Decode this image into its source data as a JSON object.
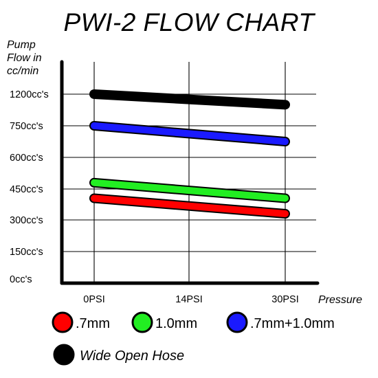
{
  "chart_data": {
    "type": "line",
    "title": "PWI-2 FLOW CHART",
    "ylabel_lines": [
      "Pump",
      "Flow in",
      "cc/min"
    ],
    "xlabel": "Pressure",
    "categories": [
      "0PSI",
      "14PSI",
      "30PSI"
    ],
    "y_ticks": [
      "0cc's",
      "150cc's",
      "300cc's",
      "450cc's",
      "600cc's",
      "750cc's",
      "1200cc's"
    ],
    "grid": true,
    "legend_position": "bottom",
    "series": [
      {
        "name": ".7mm",
        "color": "#ff0000",
        "start": 405,
        "end": 330
      },
      {
        "name": "1.0mm",
        "color": "#22ee22",
        "start": 480,
        "end": 405
      },
      {
        "name": ".7mm+1.0mm",
        "color": "#1a1aff",
        "start": 750,
        "end": 675
      },
      {
        "name": "Wide Open Hose",
        "color": "#000000",
        "start": 1200,
        "end": 1050
      }
    ]
  }
}
